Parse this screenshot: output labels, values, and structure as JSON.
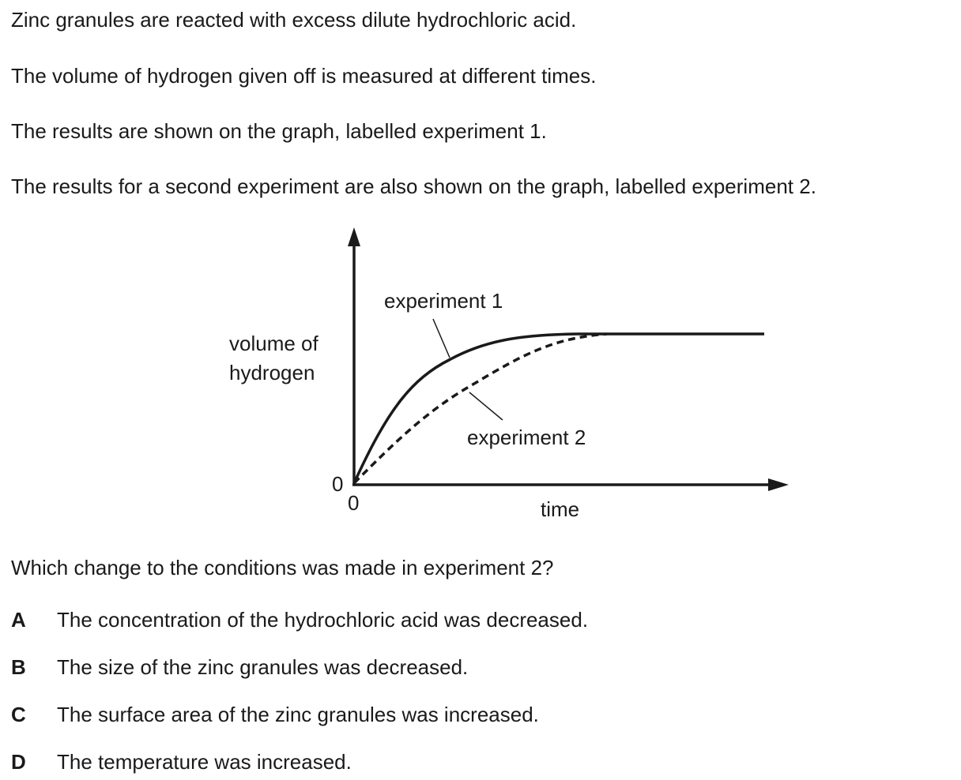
{
  "question": {
    "intro_lines": [
      "Zinc granules are reacted with excess dilute hydrochloric acid.",
      "The volume of hydrogen given off is measured at different times.",
      "The results are shown on the graph, labelled experiment 1.",
      "The results for a second experiment are also shown on the graph, labelled experiment 2."
    ],
    "prompt": "Which change to the conditions was made in experiment 2?",
    "options": [
      {
        "letter": "A",
        "text": "The concentration of the hydrochloric acid was decreased."
      },
      {
        "letter": "B",
        "text": "The size of the zinc granules was decreased."
      },
      {
        "letter": "C",
        "text": "The surface area of the zinc granules was increased."
      },
      {
        "letter": "D",
        "text": "The temperature was increased."
      }
    ]
  },
  "graph": {
    "ylabel_line1": "volume of",
    "ylabel_line2": "hydrogen",
    "xlabel": "time",
    "x_origin_label": "0",
    "y_origin_label": "0",
    "curve1_label": "experiment 1",
    "curve2_label": "experiment 2"
  }
}
